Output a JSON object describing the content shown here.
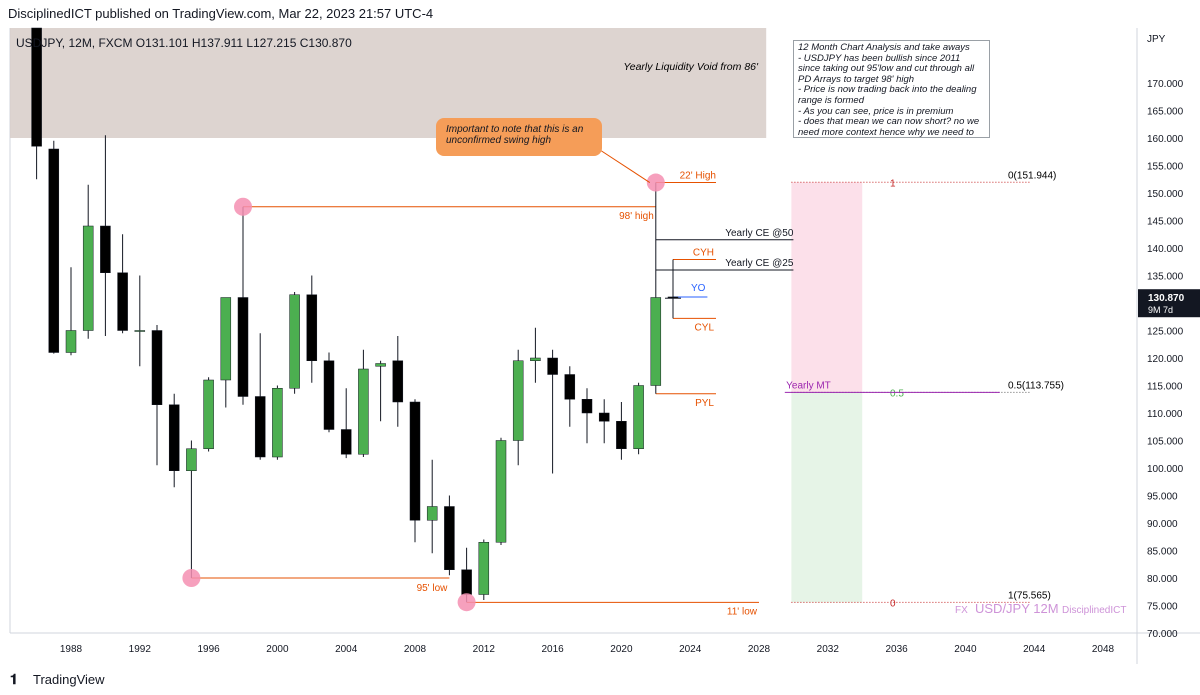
{
  "header": {
    "published": "DisciplinedICT published on TradingView.com, Mar 22, 2023 21:57 UTC-4",
    "ohlc": "USDJPY, 12M, FXCM  O131.101  H137.911  L127.215  C130.870"
  },
  "footer": {
    "brand": "TradingView",
    "logo_icon": "tradingview-logo-icon"
  },
  "colors": {
    "up": "#4caf50",
    "down": "#000000",
    "orange": "#e65100",
    "purple": "#9c27b0",
    "blue": "#2962ff",
    "zone": "#d7ccc8",
    "pink": "#f48fb1",
    "grid": "#eceff1"
  },
  "chart_data": {
    "type": "candlestick",
    "currency_label": "JPY",
    "ylim": [
      70,
      180
    ],
    "xlim": [
      1985,
      2051
    ],
    "y_ticks": [
      "170.000",
      "165.000",
      "160.000",
      "155.000",
      "150.000",
      "145.000",
      "140.000",
      "135.000",
      "125.000",
      "120.000",
      "115.000",
      "110.000",
      "105.000",
      "100.000",
      "95.000",
      "90.000",
      "85.000",
      "80.000",
      "75.000",
      "70.000"
    ],
    "x_ticks": [
      "1988",
      "1992",
      "1996",
      "2000",
      "2004",
      "2008",
      "2012",
      "2016",
      "2020",
      "2024",
      "2028",
      "2032",
      "2036",
      "2040",
      "2044",
      "2048"
    ],
    "last_price": "130.870",
    "last_price_sub": "9M 7d",
    "candles": [
      {
        "year": 1986,
        "o": 200.5,
        "h": 203.0,
        "l": 152.5,
        "c": 158.5
      },
      {
        "year": 1987,
        "o": 158.0,
        "h": 159.5,
        "l": 120.8,
        "c": 121.0
      },
      {
        "year": 1988,
        "o": 121.0,
        "h": 136.5,
        "l": 120.5,
        "c": 125.0
      },
      {
        "year": 1989,
        "o": 125.0,
        "h": 151.5,
        "l": 123.5,
        "c": 144.0
      },
      {
        "year": 1990,
        "o": 144.0,
        "h": 160.5,
        "l": 124.0,
        "c": 135.5
      },
      {
        "year": 1991,
        "o": 135.5,
        "h": 142.5,
        "l": 124.5,
        "c": 125.0
      },
      {
        "year": 1992,
        "o": 125.0,
        "h": 135.0,
        "l": 118.5,
        "c": 125.0
      },
      {
        "year": 1993,
        "o": 125.0,
        "h": 126.0,
        "l": 100.5,
        "c": 111.5
      },
      {
        "year": 1994,
        "o": 111.5,
        "h": 113.5,
        "l": 96.5,
        "c": 99.5
      },
      {
        "year": 1995,
        "o": 99.5,
        "h": 105.0,
        "l": 80.0,
        "c": 103.5
      },
      {
        "year": 1996,
        "o": 103.5,
        "h": 116.5,
        "l": 103.0,
        "c": 116.0
      },
      {
        "year": 1997,
        "o": 116.0,
        "h": 131.0,
        "l": 111.0,
        "c": 131.0
      },
      {
        "year": 1998,
        "o": 131.0,
        "h": 147.5,
        "l": 111.5,
        "c": 113.0
      },
      {
        "year": 1999,
        "o": 113.0,
        "h": 124.5,
        "l": 101.5,
        "c": 102.0
      },
      {
        "year": 2000,
        "o": 102.0,
        "h": 115.0,
        "l": 101.5,
        "c": 114.5
      },
      {
        "year": 2001,
        "o": 114.5,
        "h": 132.0,
        "l": 113.5,
        "c": 131.5
      },
      {
        "year": 2002,
        "o": 131.5,
        "h": 135.0,
        "l": 115.5,
        "c": 119.5
      },
      {
        "year": 2003,
        "o": 119.5,
        "h": 121.0,
        "l": 106.5,
        "c": 107.0
      },
      {
        "year": 2004,
        "o": 107.0,
        "h": 114.5,
        "l": 101.8,
        "c": 102.5
      },
      {
        "year": 2005,
        "o": 102.5,
        "h": 121.5,
        "l": 102.0,
        "c": 118.0
      },
      {
        "year": 2006,
        "o": 118.5,
        "h": 119.5,
        "l": 108.5,
        "c": 119.0
      },
      {
        "year": 2007,
        "o": 119.5,
        "h": 124.0,
        "l": 107.5,
        "c": 112.0
      },
      {
        "year": 2008,
        "o": 112.0,
        "h": 112.5,
        "l": 86.5,
        "c": 90.5
      },
      {
        "year": 2009,
        "o": 90.5,
        "h": 101.5,
        "l": 84.5,
        "c": 93.0
      },
      {
        "year": 2010,
        "o": 93.0,
        "h": 95.0,
        "l": 80.5,
        "c": 81.5
      },
      {
        "year": 2011,
        "o": 81.5,
        "h": 85.5,
        "l": 75.6,
        "c": 77.0
      },
      {
        "year": 2012,
        "o": 77.0,
        "h": 87.0,
        "l": 76.0,
        "c": 86.5
      },
      {
        "year": 2013,
        "o": 86.5,
        "h": 105.5,
        "l": 86.0,
        "c": 105.0
      },
      {
        "year": 2014,
        "o": 105.0,
        "h": 121.5,
        "l": 100.5,
        "c": 119.5
      },
      {
        "year": 2015,
        "o": 119.5,
        "h": 125.5,
        "l": 115.5,
        "c": 120.0
      },
      {
        "year": 2016,
        "o": 120.0,
        "h": 121.5,
        "l": 99.0,
        "c": 117.0
      },
      {
        "year": 2017,
        "o": 117.0,
        "h": 118.5,
        "l": 107.5,
        "c": 112.5
      },
      {
        "year": 2018,
        "o": 112.5,
        "h": 114.5,
        "l": 104.5,
        "c": 110.0
      },
      {
        "year": 2019,
        "o": 110.0,
        "h": 112.5,
        "l": 104.5,
        "c": 108.5
      },
      {
        "year": 2020,
        "o": 108.5,
        "h": 112.0,
        "l": 101.5,
        "c": 103.5
      },
      {
        "year": 2021,
        "o": 103.5,
        "h": 115.5,
        "l": 102.5,
        "c": 115.0
      },
      {
        "year": 2022,
        "o": 115.0,
        "h": 151.9,
        "l": 113.5,
        "c": 131.0
      },
      {
        "year": 2023,
        "o": 131.1,
        "h": 137.9,
        "l": 127.2,
        "c": 130.9
      }
    ],
    "liquidity_zone": {
      "label": "Yearly Liquidity Void from 86'",
      "from_year": 1985,
      "to_year": 2029,
      "y_low": 160.0,
      "y_high": 180.0
    },
    "levels": [
      {
        "label": "22' High",
        "y": 151.9,
        "x1": 2022,
        "x2": 2025.5,
        "color": "orange"
      },
      {
        "label": "98' high",
        "y": 147.5,
        "x1": 1998,
        "x2": 2022,
        "color": "orange"
      },
      {
        "label": "Yearly CE @50",
        "y": 141.5,
        "x1": 2022,
        "x2": 2030,
        "color": "black"
      },
      {
        "label": "CYH",
        "y": 137.9,
        "x1": 2023,
        "x2": 2025.5,
        "color": "orange"
      },
      {
        "label": "Yearly CE @25",
        "y": 136.0,
        "x1": 2022,
        "x2": 2030,
        "color": "black"
      },
      {
        "label": "YO",
        "y": 131.1,
        "x1": 2023,
        "x2": 2025,
        "color": "blue"
      },
      {
        "label": "CYL",
        "y": 127.2,
        "x1": 2023,
        "x2": 2025.5,
        "color": "orange"
      },
      {
        "label": "Yearly MT",
        "y": 113.755,
        "x1": 2029.5,
        "x2": 2042,
        "color": "purple"
      },
      {
        "label": "PYL",
        "y": 113.5,
        "x1": 2022,
        "x2": 2025.5,
        "color": "orange"
      },
      {
        "label": "95' low",
        "y": 80.0,
        "x1": 1995,
        "x2": 2010,
        "color": "orange"
      },
      {
        "label": "11' low",
        "y": 75.565,
        "x1": 2011,
        "x2": 2028,
        "color": "orange"
      }
    ],
    "swing_points": [
      {
        "year": 2022,
        "y": 151.9
      },
      {
        "year": 1998,
        "y": 147.5
      },
      {
        "year": 1995,
        "y": 80.0
      },
      {
        "year": 2011,
        "y": 75.6
      }
    ],
    "fib": {
      "x1": 2030,
      "x2": 2034,
      "x_label": 2042,
      "top": 151.944,
      "mid": 113.755,
      "bottom": 75.565,
      "top_label": "0(151.944)",
      "mid_label": "0.5(113.755)",
      "bottom_label": "1(75.565)",
      "top_marker": "1",
      "mid_marker": "0.5",
      "bottom_marker": "0"
    },
    "watermark": {
      "prefix": "FX",
      "symbol": "USD/JPY 12M",
      "author": "DisciplinedICT"
    }
  },
  "annotations": {
    "callout": "Important to note that this is an unconfirmed swing high",
    "analysis": "12 Month Chart Analysis and take aways\n- USDJPY has been bullish since 2011 since taking out 95'low and cut through all PD Arrays to target 98' high\n- Price is now trading back into the dealing range is formed\n- As you can see, price is in premium\n- does that mean we can now short? no we need more context hence why we need to switch monthly next"
  }
}
